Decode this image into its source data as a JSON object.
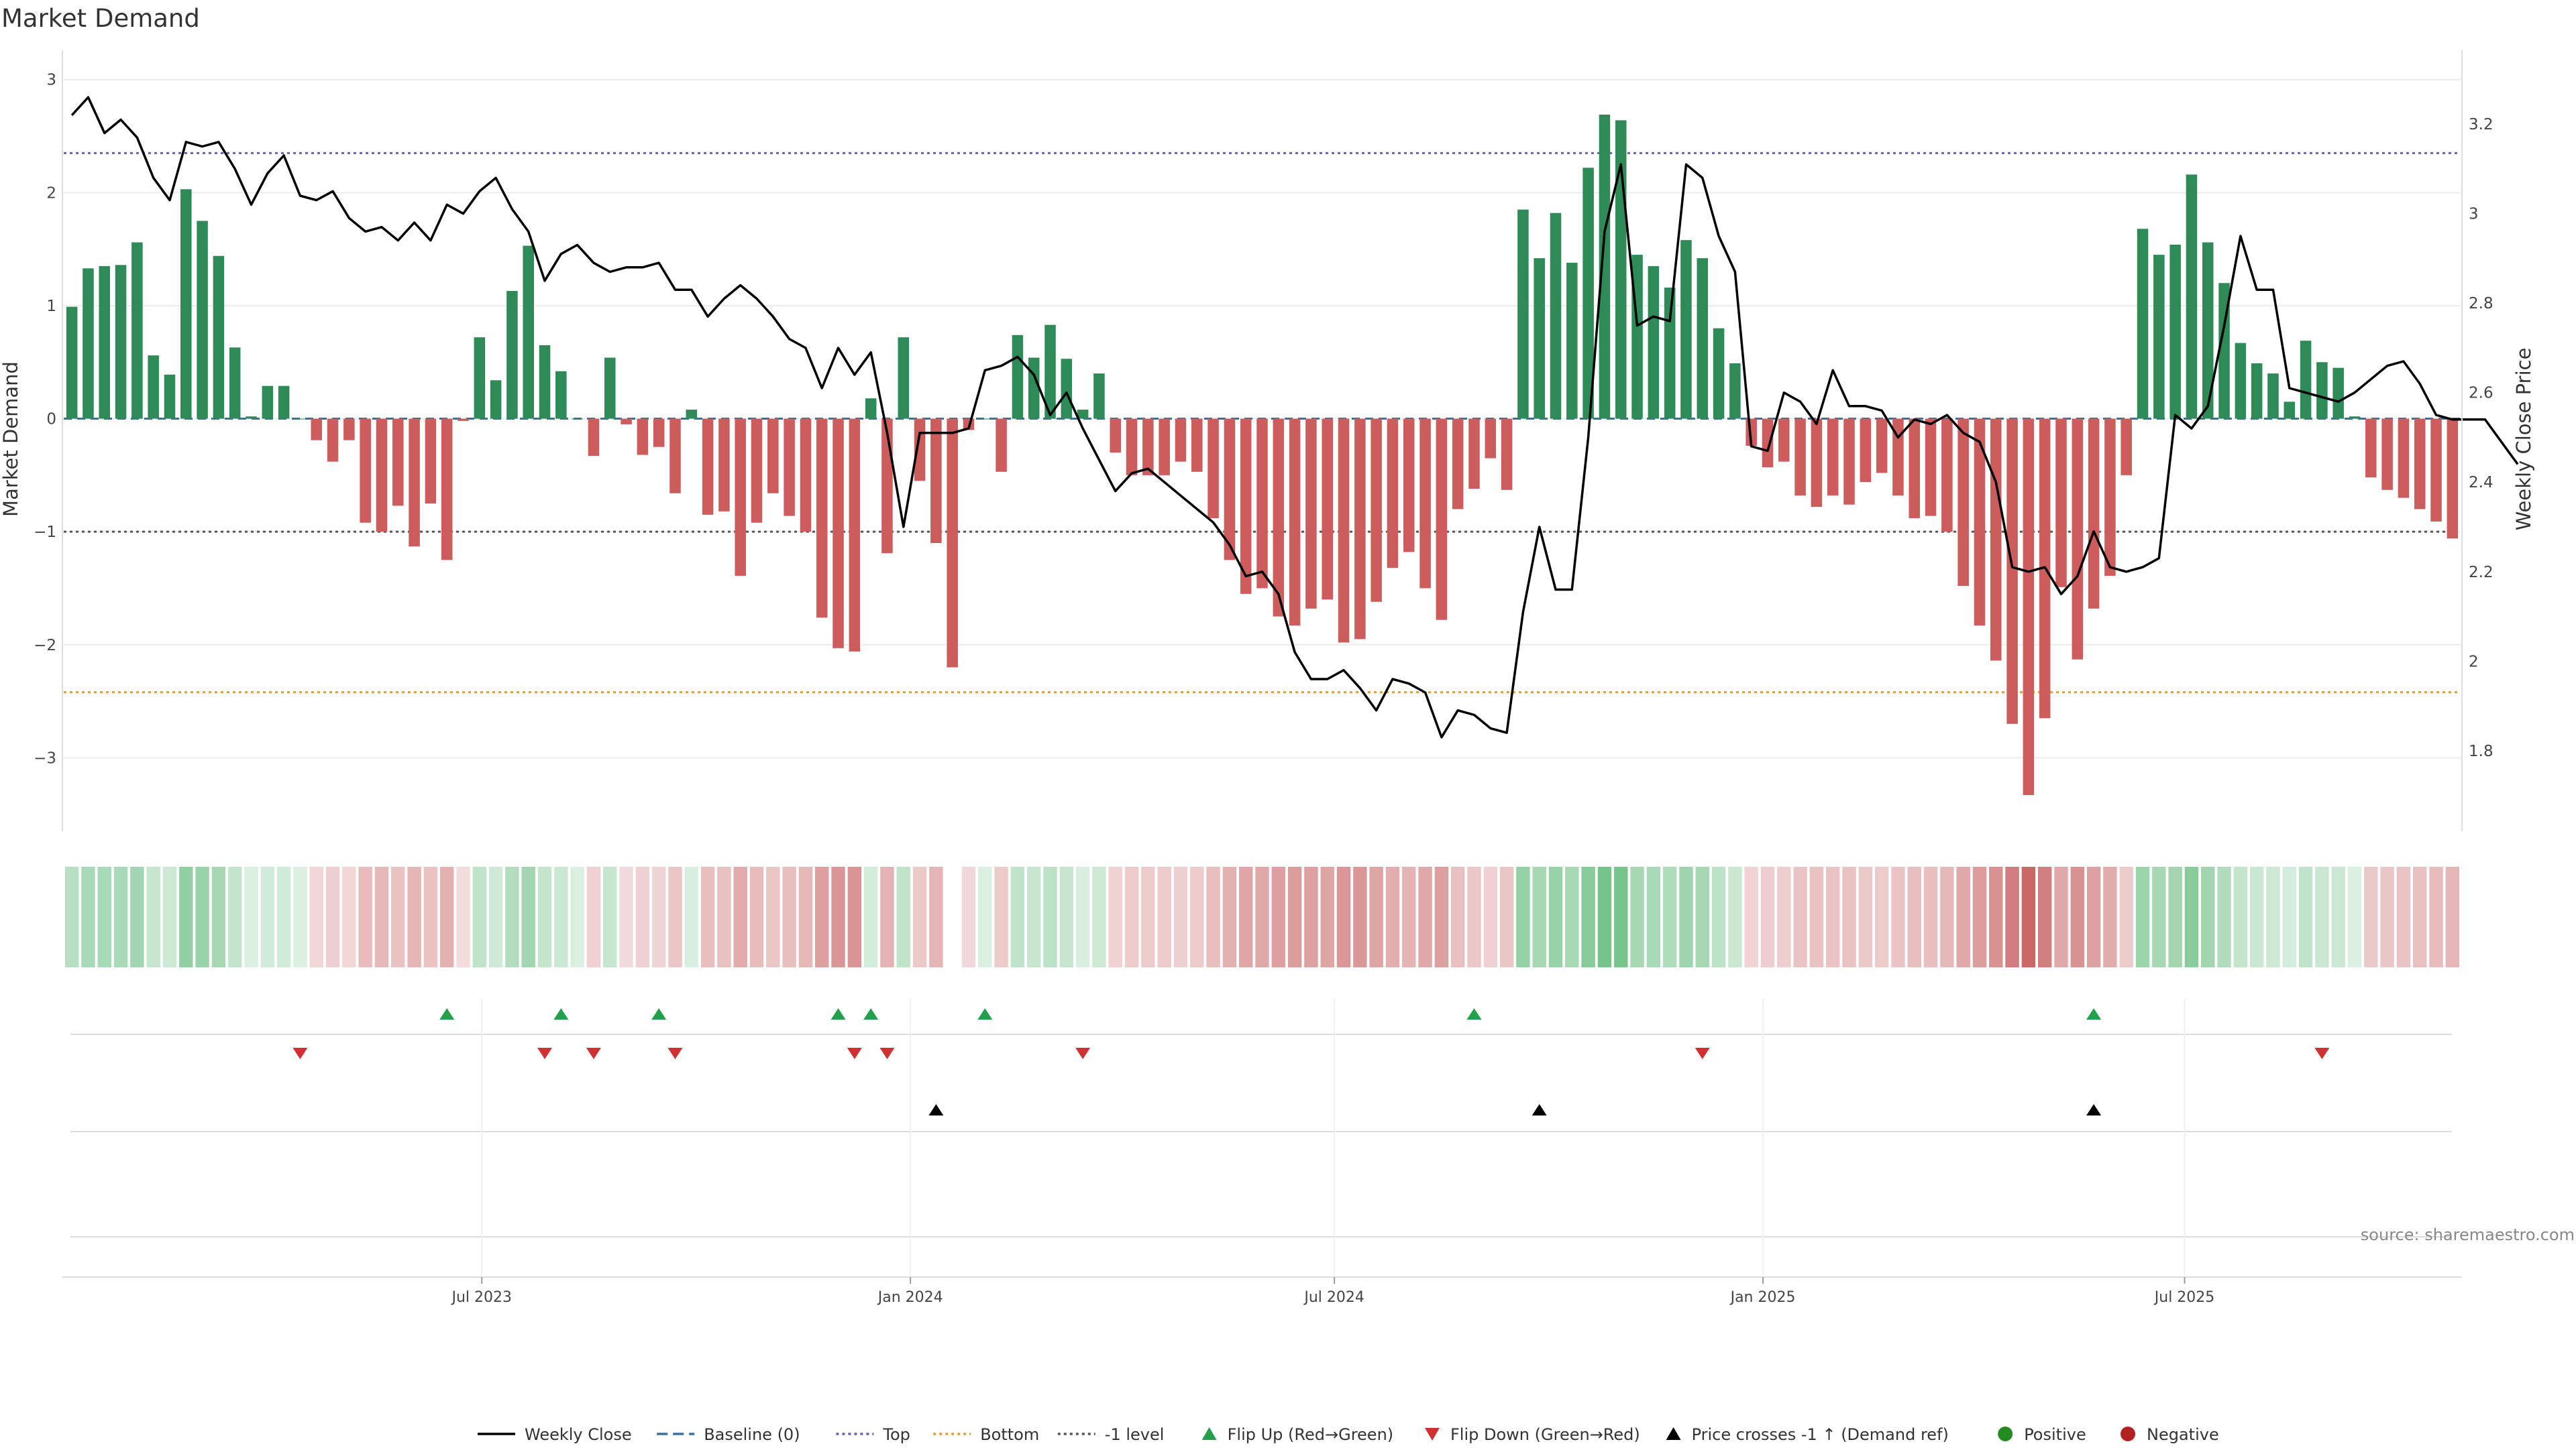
{
  "chart_data": {
    "type": "bar",
    "title": "Market Demand",
    "ylabel_left": "Market Demand",
    "ylabel_right": "Weekly Close Price",
    "source": "source: sharemaestro.com",
    "x_ticks": [
      "Jul 2023",
      "Jan 2024",
      "Jul 2024",
      "Jan 2025",
      "Jul 2025"
    ],
    "y_left_ticks": [
      "3",
      "2",
      "1",
      "0",
      "−1",
      "−2",
      "−3"
    ],
    "y_right_ticks": [
      "3.2",
      "3",
      "2.8",
      "2.6",
      "2.4",
      "2.2",
      "2",
      "1.8"
    ],
    "ylim_left": [
      -3.65,
      3.2
    ],
    "ylim_right": [
      1.62,
      3.35
    ],
    "reference_lines": {
      "top": 2.35,
      "bottom": -2.42,
      "minus_one": -1.0,
      "baseline": 0
    },
    "series": [
      {
        "name": "Market Demand",
        "values": [
          0.99,
          1.33,
          1.35,
          1.36,
          1.56,
          0.56,
          0.39,
          2.03,
          1.75,
          1.44,
          0.63,
          0.02,
          0.29,
          0.29,
          0.0,
          -0.19,
          -0.38,
          -0.19,
          -0.92,
          -1.0,
          -0.77,
          -1.13,
          -0.75,
          -1.25,
          -0.02,
          0.72,
          0.34,
          1.13,
          1.53,
          0.65,
          0.42,
          0.0,
          -0.33,
          0.54,
          -0.05,
          -0.32,
          -0.25,
          -0.66,
          0.08,
          -0.85,
          -0.82,
          -1.39,
          -0.92,
          -0.66,
          -0.86,
          -1.0,
          -1.76,
          -2.03,
          -2.06,
          0.18,
          -1.19,
          0.72,
          -0.55,
          -1.1,
          -2.2,
          -0.1,
          0.0,
          -0.47,
          0.74,
          0.54,
          0.83,
          0.53,
          0.08,
          0.4,
          -0.3,
          -0.5,
          -0.5,
          -0.5,
          -0.38,
          -0.47,
          -0.88,
          -1.25,
          -1.55,
          -1.5,
          -1.75,
          -1.83,
          -1.68,
          -1.6,
          -1.98,
          -1.95,
          -1.62,
          -1.32,
          -1.18,
          -1.5,
          -1.78,
          -0.8,
          -0.62,
          -0.35,
          -0.63,
          1.85,
          1.42,
          1.82,
          1.38,
          2.22,
          2.69,
          2.64,
          1.45,
          1.35,
          1.16,
          1.58,
          1.42,
          0.8,
          0.49,
          -0.24,
          -0.43,
          -0.38,
          -0.68,
          -0.78,
          -0.68,
          -0.76,
          -0.56,
          -0.48,
          -0.68,
          -0.88,
          -0.86,
          -1.0,
          -1.48,
          -1.83,
          -2.14,
          -2.7,
          -3.33,
          -2.65,
          -1.49,
          -2.13,
          -1.68,
          -1.39,
          -0.5,
          1.68,
          1.45,
          1.54,
          2.16,
          1.56,
          1.2,
          0.67,
          0.49,
          0.4,
          0.15,
          0.69,
          0.5,
          0.45,
          0.02,
          -0.52,
          -0.63,
          -0.7,
          -0.8,
          -0.91,
          -1.06
        ]
      },
      {
        "name": "Weekly Close",
        "values": [
          3.22,
          3.26,
          3.18,
          3.21,
          3.17,
          3.08,
          3.03,
          3.16,
          3.15,
          3.16,
          3.1,
          3.02,
          3.09,
          3.13,
          3.04,
          3.03,
          3.05,
          2.99,
          2.96,
          2.97,
          2.94,
          2.98,
          2.94,
          3.02,
          3.0,
          3.05,
          3.08,
          3.01,
          2.96,
          2.85,
          2.91,
          2.93,
          2.89,
          2.87,
          2.88,
          2.88,
          2.89,
          2.83,
          2.83,
          2.77,
          2.81,
          2.84,
          2.81,
          2.77,
          2.72,
          2.7,
          2.61,
          2.7,
          2.64,
          2.69,
          2.51,
          2.3,
          2.51,
          2.51,
          2.51,
          2.52,
          2.65,
          2.66,
          2.68,
          2.64,
          2.55,
          2.6,
          2.52,
          2.45,
          2.38,
          2.42,
          2.43,
          2.4,
          2.37,
          2.34,
          2.31,
          2.26,
          2.19,
          2.2,
          2.15,
          2.02,
          1.96,
          1.96,
          1.98,
          1.94,
          1.89,
          1.96,
          1.95,
          1.93,
          1.83,
          1.89,
          1.88,
          1.85,
          1.84,
          2.11,
          2.3,
          2.16,
          2.16,
          2.5,
          2.96,
          3.11,
          2.75,
          2.77,
          2.76,
          3.11,
          3.08,
          2.95,
          2.87,
          2.48,
          2.47,
          2.6,
          2.58,
          2.53,
          2.65,
          2.57,
          2.57,
          2.56,
          2.5,
          2.54,
          2.53,
          2.55,
          2.51,
          2.49,
          2.4,
          2.21,
          2.2,
          2.21,
          2.15,
          2.19,
          2.29,
          2.21,
          2.2,
          2.21,
          2.23,
          2.55,
          2.52,
          2.57,
          2.75,
          2.95,
          2.83,
          2.83,
          2.61,
          2.6,
          2.59,
          2.58,
          2.6,
          2.63,
          2.66,
          2.67,
          2.62,
          2.55,
          2.54,
          2.54,
          2.54,
          2.49,
          2.44
        ]
      }
    ],
    "heat_strip": "demand level per week (green = positive, red = negative)",
    "flip_up_weeks": [
      23,
      30,
      36,
      47,
      49,
      56,
      86,
      124
    ],
    "flip_down_weeks": [
      14,
      29,
      32,
      37,
      48,
      50,
      62,
      100,
      138
    ],
    "price_cross_weeks": [
      53,
      90,
      124
    ],
    "legend": [
      {
        "label": "Weekly Close",
        "symbol": "line",
        "color": "#000000"
      },
      {
        "label": "Baseline (0)",
        "symbol": "dashed",
        "color": "#3a6ea5"
      },
      {
        "label": "Top",
        "symbol": "dotted",
        "color": "#6b5fb5"
      },
      {
        "label": "Bottom",
        "symbol": "dotted",
        "color": "#e0a030"
      },
      {
        "label": "-1 level",
        "symbol": "dotted",
        "color": "#555555"
      },
      {
        "label": "Flip Up (Red→Green)",
        "symbol": "triangle-up",
        "color": "#22a04a"
      },
      {
        "label": "Flip Down (Green→Red)",
        "symbol": "triangle-down",
        "color": "#d03030"
      },
      {
        "label": "Price crosses -1 ↑ (Demand ref)",
        "symbol": "triangle-up",
        "color": "#000000"
      },
      {
        "label": "Positive",
        "symbol": "dot",
        "color": "#228b22"
      },
      {
        "label": "Negative",
        "symbol": "dot",
        "color": "#b22222"
      }
    ],
    "colors": {
      "positive": "#2e8b57",
      "negative": "#cd5c5c",
      "flip_up": "#22a04a",
      "flip_down": "#d03030"
    }
  }
}
